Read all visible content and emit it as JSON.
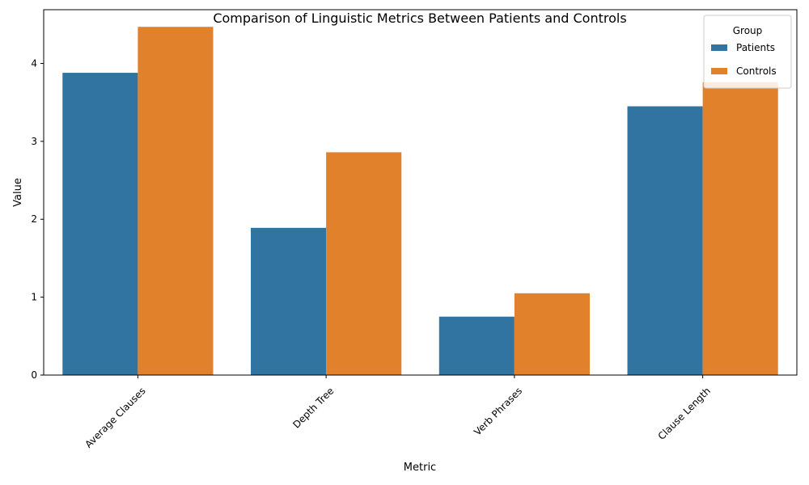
{
  "chart_data": {
    "type": "bar",
    "title": "Comparison of Linguistic Metrics Between Patients and Controls",
    "xlabel": "Metric",
    "ylabel": "Value",
    "categories": [
      "Average Clauses",
      "Depth Tree",
      "Verb Phrases",
      "Clause Length"
    ],
    "series": [
      {
        "name": "Patients",
        "color": "#3274a1",
        "values": [
          3.88,
          1.89,
          0.75,
          3.45
        ]
      },
      {
        "name": "Controls",
        "color": "#e1812c",
        "values": [
          4.47,
          2.86,
          1.05,
          3.76
        ]
      }
    ],
    "ylim": [
      0,
      4.69
    ],
    "yticks": [
      0,
      1,
      2,
      3,
      4
    ],
    "grid": false,
    "legend": {
      "title": "Group",
      "placement": "top-right"
    }
  }
}
